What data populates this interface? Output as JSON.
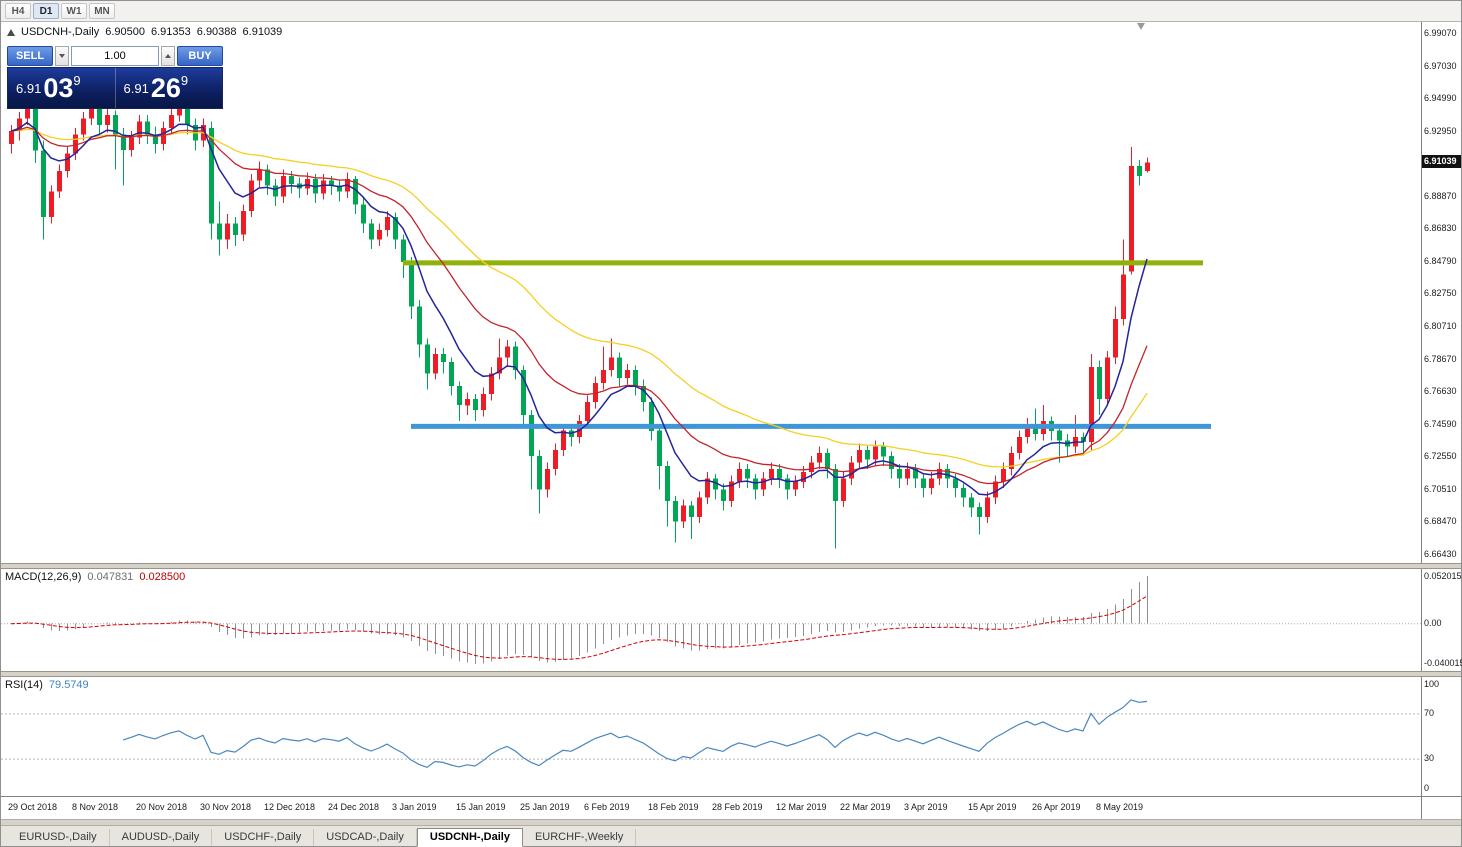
{
  "toolbar": {
    "timeframes": [
      {
        "label": "H4",
        "active": false
      },
      {
        "label": "D1",
        "active": true
      },
      {
        "label": "W1",
        "active": false
      },
      {
        "label": "MN",
        "active": false
      }
    ]
  },
  "chart_header": {
    "symbol_title": "USDCNH-,Daily",
    "ohlc": {
      "open": "6.90500",
      "high": "6.91353",
      "low": "6.90388",
      "close": "6.91039"
    }
  },
  "one_click": {
    "sell_label": "SELL",
    "buy_label": "BUY",
    "volume": "1.00",
    "bid": {
      "small": "6.91",
      "big": "03",
      "sup": "9"
    },
    "ask": {
      "small": "6.91",
      "big": "26",
      "sup": "9"
    }
  },
  "price_axis": {
    "labels": [
      "6.99070",
      "6.97030",
      "6.94990",
      "6.92950",
      "6.88870",
      "6.86830",
      "6.84790",
      "6.82750",
      "6.80710",
      "6.78670",
      "6.76630",
      "6.74590",
      "6.72550",
      "6.70510",
      "6.68470",
      "6.66430"
    ],
    "current": "6.91039"
  },
  "macd_panel": {
    "title": "MACD(12,26,9)",
    "main_value": "0.047831",
    "signal_value": "0.028500",
    "axis_top": "0.052015",
    "axis_zero": "0.00",
    "axis_bottom": "-0.040015"
  },
  "rsi_panel": {
    "title": "RSI(14)",
    "value": "79.5749",
    "axis": [
      "100",
      "70",
      "30",
      "0"
    ],
    "levels": [
      70,
      30
    ]
  },
  "time_axis": [
    {
      "label": "29 Oct 2018",
      "index": 0
    },
    {
      "label": "8 Nov 2018",
      "index": 8
    },
    {
      "label": "20 Nov 2018",
      "index": 16
    },
    {
      "label": "30 Nov 2018",
      "index": 24
    },
    {
      "label": "12 Dec 2018",
      "index": 32
    },
    {
      "label": "24 Dec 2018",
      "index": 40
    },
    {
      "label": "3 Jan 2019",
      "index": 48
    },
    {
      "label": "15 Jan 2019",
      "index": 56
    },
    {
      "label": "25 Jan 2019",
      "index": 64
    },
    {
      "label": "6 Feb 2019",
      "index": 72
    },
    {
      "label": "18 Feb 2019",
      "index": 80
    },
    {
      "label": "28 Feb 2019",
      "index": 88
    },
    {
      "label": "12 Mar 2019",
      "index": 96
    },
    {
      "label": "22 Mar 2019",
      "index": 104
    },
    {
      "label": "3 Apr 2019",
      "index": 112
    },
    {
      "label": "15 Apr 2019",
      "index": 120
    },
    {
      "label": "26 Apr 2019",
      "index": 128
    },
    {
      "label": "8 May 2019",
      "index": 136
    }
  ],
  "tabs": [
    {
      "label": "EURUSD-,Daily",
      "active": false
    },
    {
      "label": "AUDUSD-,Daily",
      "active": false
    },
    {
      "label": "USDCHF-,Daily",
      "active": false
    },
    {
      "label": "USDCAD-,Daily",
      "active": false
    },
    {
      "label": "USDCNH-,Daily",
      "active": true
    },
    {
      "label": "EURCHF-,Weekly",
      "active": false
    }
  ],
  "chart_data": {
    "type": "candlestick",
    "symbol": "USDCNH",
    "timeframe": "Daily",
    "ylim": [
      6.659,
      6.9985
    ],
    "colors": {
      "up": "#ee1c25",
      "down": "#00a651"
    },
    "overlays": {
      "ma_fast": {
        "period": 8,
        "color": "#24249c"
      },
      "ma_mid": {
        "period": 20,
        "color": "#c4242c"
      },
      "ma_slow": {
        "period": 40,
        "color": "#f5d020"
      },
      "hlines": [
        {
          "price": 6.8473,
          "from_index": 49,
          "to_index": 149,
          "color": "#8fb20a"
        },
        {
          "price": 6.7447,
          "from_index": 50,
          "to_index": 150,
          "color": "#3e96d9"
        }
      ]
    },
    "indicators": {
      "macd": {
        "fast": 12,
        "slow": 26,
        "signal": 9,
        "hist_color": "#909090",
        "signal_color": "#d40000"
      },
      "rsi": {
        "period": 14,
        "color": "#4a86c0"
      }
    },
    "candles": [
      [
        6.922,
        6.934,
        6.916,
        6.93
      ],
      [
        6.93,
        6.942,
        6.924,
        6.938
      ],
      [
        6.938,
        6.955,
        6.934,
        6.948
      ],
      [
        6.948,
        6.952,
        6.91,
        6.918
      ],
      [
        6.918,
        6.924,
        6.862,
        6.876
      ],
      [
        6.876,
        6.896,
        6.872,
        6.892
      ],
      [
        6.892,
        6.909,
        6.888,
        6.905
      ],
      [
        6.905,
        6.92,
        6.901,
        6.916
      ],
      [
        6.916,
        6.932,
        6.912,
        6.928
      ],
      [
        6.928,
        6.942,
        6.924,
        6.938
      ],
      [
        6.938,
        6.952,
        6.934,
        6.945
      ],
      [
        6.945,
        6.949,
        6.928,
        6.934
      ],
      [
        6.934,
        6.944,
        6.929,
        6.94
      ],
      [
        6.94,
        6.943,
        6.906,
        6.928
      ],
      [
        6.928,
        6.932,
        6.896,
        6.918
      ],
      [
        6.918,
        6.93,
        6.914,
        6.926
      ],
      [
        6.926,
        6.94,
        6.922,
        6.936
      ],
      [
        6.936,
        6.94,
        6.922,
        6.928
      ],
      [
        6.928,
        6.933,
        6.916,
        6.922
      ],
      [
        6.922,
        6.936,
        6.918,
        6.932
      ],
      [
        6.932,
        6.944,
        6.928,
        6.94
      ],
      [
        6.94,
        6.952,
        6.936,
        6.946
      ],
      [
        6.946,
        6.949,
        6.928,
        6.934
      ],
      [
        6.934,
        6.938,
        6.918,
        6.924
      ],
      [
        6.924,
        6.938,
        6.92,
        6.934
      ],
      [
        6.932,
        6.936,
        6.862,
        6.872
      ],
      [
        6.872,
        6.886,
        6.852,
        6.862
      ],
      [
        6.862,
        6.878,
        6.856,
        6.872
      ],
      [
        6.872,
        6.876,
        6.858,
        6.865
      ],
      [
        6.865,
        6.884,
        6.861,
        6.88
      ],
      [
        6.88,
        6.903,
        6.876,
        6.899
      ],
      [
        6.899,
        6.911,
        6.895,
        6.906
      ],
      [
        6.906,
        6.909,
        6.89,
        6.896
      ],
      [
        6.896,
        6.9,
        6.883,
        6.889
      ],
      [
        6.889,
        6.906,
        6.885,
        6.902
      ],
      [
        6.902,
        6.905,
        6.891,
        6.897
      ],
      [
        6.897,
        6.901,
        6.888,
        6.894
      ],
      [
        6.894,
        6.904,
        6.89,
        6.9
      ],
      [
        6.9,
        6.903,
        6.885,
        6.891
      ],
      [
        6.891,
        6.903,
        6.887,
        6.899
      ],
      [
        6.899,
        6.902,
        6.89,
        6.896
      ],
      [
        6.896,
        6.899,
        6.886,
        6.892
      ],
      [
        6.892,
        6.904,
        6.888,
        6.9
      ],
      [
        6.9,
        6.902,
        6.878,
        6.884
      ],
      [
        6.884,
        6.888,
        6.866,
        6.872
      ],
      [
        6.872,
        6.875,
        6.856,
        6.862
      ],
      [
        6.862,
        6.872,
        6.858,
        6.868
      ],
      [
        6.868,
        6.88,
        6.864,
        6.876
      ],
      [
        6.876,
        6.879,
        6.856,
        6.862
      ],
      [
        6.862,
        6.865,
        6.838,
        6.848
      ],
      [
        6.848,
        6.851,
        6.812,
        6.82
      ],
      [
        6.82,
        6.824,
        6.788,
        6.796
      ],
      [
        6.796,
        6.8,
        6.768,
        6.778
      ],
      [
        6.778,
        6.794,
        6.774,
        6.79
      ],
      [
        6.79,
        6.794,
        6.778,
        6.785
      ],
      [
        6.785,
        6.788,
        6.764,
        6.77
      ],
      [
        6.77,
        6.773,
        6.748,
        6.758
      ],
      [
        6.758,
        6.766,
        6.752,
        6.762
      ],
      [
        6.762,
        6.765,
        6.748,
        6.755
      ],
      [
        6.755,
        6.769,
        6.751,
        6.765
      ],
      [
        6.765,
        6.782,
        6.761,
        6.778
      ],
      [
        6.778,
        6.8,
        6.774,
        6.788
      ],
      [
        6.788,
        6.799,
        6.782,
        6.795
      ],
      [
        6.795,
        6.798,
        6.774,
        6.78
      ],
      [
        6.78,
        6.783,
        6.744,
        6.752
      ],
      [
        6.752,
        6.755,
        6.705,
        6.726
      ],
      [
        6.726,
        6.73,
        6.69,
        6.705
      ],
      [
        6.705,
        6.722,
        6.7,
        6.718
      ],
      [
        6.718,
        6.734,
        6.714,
        6.73
      ],
      [
        6.73,
        6.746,
        6.726,
        6.742
      ],
      [
        6.742,
        6.745,
        6.732,
        6.738
      ],
      [
        6.738,
        6.752,
        6.734,
        6.748
      ],
      [
        6.748,
        6.764,
        6.744,
        6.76
      ],
      [
        6.76,
        6.776,
        6.756,
        6.772
      ],
      [
        6.772,
        6.795,
        6.768,
        6.78
      ],
      [
        6.78,
        6.8,
        6.776,
        6.788
      ],
      [
        6.788,
        6.791,
        6.769,
        6.775
      ],
      [
        6.775,
        6.784,
        6.771,
        6.78
      ],
      [
        6.78,
        6.783,
        6.764,
        6.77
      ],
      [
        6.77,
        6.774,
        6.754,
        6.76
      ],
      [
        6.76,
        6.763,
        6.736,
        6.742
      ],
      [
        6.742,
        6.745,
        6.705,
        6.72
      ],
      [
        6.72,
        6.723,
        6.682,
        6.698
      ],
      [
        6.698,
        6.701,
        6.672,
        6.685
      ],
      [
        6.685,
        6.699,
        6.681,
        6.695
      ],
      [
        6.695,
        6.698,
        6.674,
        6.688
      ],
      [
        6.688,
        6.704,
        6.684,
        6.7
      ],
      [
        6.7,
        6.716,
        6.696,
        6.712
      ],
      [
        6.712,
        6.715,
        6.699,
        6.705
      ],
      [
        6.705,
        6.709,
        6.692,
        6.698
      ],
      [
        6.698,
        6.714,
        6.694,
        6.71
      ],
      [
        6.71,
        6.722,
        6.706,
        6.718
      ],
      [
        6.718,
        6.721,
        6.706,
        6.712
      ],
      [
        6.712,
        6.715,
        6.699,
        6.705
      ],
      [
        6.705,
        6.716,
        6.701,
        6.712
      ],
      [
        6.712,
        6.722,
        6.708,
        6.718
      ],
      [
        6.718,
        6.721,
        6.706,
        6.712
      ],
      [
        6.712,
        6.715,
        6.699,
        6.705
      ],
      [
        6.705,
        6.714,
        6.701,
        6.71
      ],
      [
        6.71,
        6.72,
        6.706,
        6.716
      ],
      [
        6.716,
        6.726,
        6.712,
        6.722
      ],
      [
        6.722,
        6.732,
        6.718,
        6.728
      ],
      [
        6.728,
        6.731,
        6.712,
        6.718
      ],
      [
        6.718,
        6.721,
        6.668,
        6.698
      ],
      [
        6.698,
        6.716,
        6.694,
        6.712
      ],
      [
        6.712,
        6.726,
        6.708,
        6.722
      ],
      [
        6.722,
        6.734,
        6.718,
        6.73
      ],
      [
        6.73,
        6.733,
        6.718,
        6.724
      ],
      [
        6.724,
        6.736,
        6.72,
        6.732
      ],
      [
        6.732,
        6.735,
        6.72,
        6.726
      ],
      [
        6.726,
        6.729,
        6.712,
        6.718
      ],
      [
        6.718,
        6.721,
        6.706,
        6.712
      ],
      [
        6.712,
        6.722,
        6.708,
        6.718
      ],
      [
        6.718,
        6.721,
        6.706,
        6.712
      ],
      [
        6.712,
        6.715,
        6.7,
        6.706
      ],
      [
        6.706,
        6.716,
        6.702,
        6.712
      ],
      [
        6.712,
        6.722,
        6.708,
        6.718
      ],
      [
        6.718,
        6.721,
        6.706,
        6.712
      ],
      [
        6.712,
        6.715,
        6.7,
        6.706
      ],
      [
        6.706,
        6.709,
        6.694,
        6.7
      ],
      [
        6.7,
        6.703,
        6.688,
        6.694
      ],
      [
        6.694,
        6.697,
        6.677,
        6.688
      ],
      [
        6.688,
        6.704,
        6.684,
        6.7
      ],
      [
        6.7,
        6.714,
        6.696,
        6.71
      ],
      [
        6.71,
        6.722,
        6.706,
        6.718
      ],
      [
        6.718,
        6.732,
        6.714,
        6.728
      ],
      [
        6.728,
        6.742,
        6.724,
        6.738
      ],
      [
        6.738,
        6.75,
        6.734,
        6.746
      ],
      [
        6.746,
        6.756,
        6.736,
        6.74
      ],
      [
        6.74,
        6.758,
        6.736,
        6.748
      ],
      [
        6.748,
        6.751,
        6.736,
        6.742
      ],
      [
        6.742,
        6.745,
        6.722,
        6.736
      ],
      [
        6.736,
        6.74,
        6.726,
        6.732
      ],
      [
        6.732,
        6.752,
        6.728,
        6.738
      ],
      [
        6.738,
        6.741,
        6.728,
        6.735
      ],
      [
        6.735,
        6.79,
        6.73,
        6.782
      ],
      [
        6.782,
        6.786,
        6.752,
        6.762
      ],
      [
        6.762,
        6.792,
        6.758,
        6.788
      ],
      [
        6.788,
        6.82,
        6.784,
        6.812
      ],
      [
        6.812,
        6.862,
        6.808,
        6.84
      ],
      [
        6.842,
        6.92,
        6.84,
        6.908
      ],
      [
        6.908,
        6.912,
        6.896,
        6.902
      ],
      [
        6.905,
        6.9135,
        6.9039,
        6.9104
      ]
    ]
  }
}
